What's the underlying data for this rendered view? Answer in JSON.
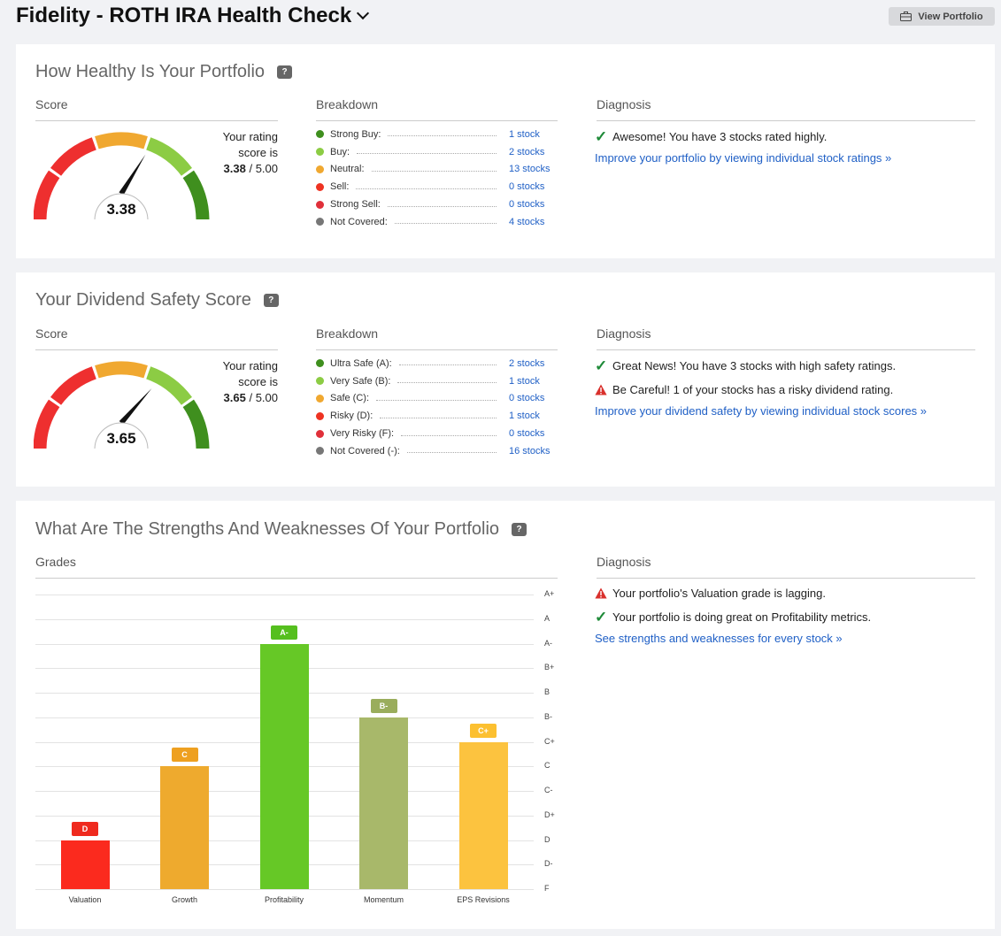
{
  "header": {
    "title": "Fidelity - ROTH IRA Health Check",
    "view_portfolio": "View Portfolio"
  },
  "health": {
    "title": "How Healthy Is Your Portfolio",
    "help": "?",
    "score_head": "Score",
    "breakdown_head": "Breakdown",
    "diagnosis_head": "Diagnosis",
    "gauge_value": "3.38",
    "score_fraction": 0.676,
    "rating_line1": "Your rating",
    "rating_line2": "score is",
    "rating_score": "3.38",
    "rating_max": "/ 5.00",
    "breakdown": [
      {
        "label": "Strong Buy:",
        "count": "1 stock",
        "color": "#3f8f1e"
      },
      {
        "label": "Buy:",
        "count": "2 stocks",
        "color": "#8ccc44"
      },
      {
        "label": "Neutral:",
        "count": "13 stocks",
        "color": "#f0a830"
      },
      {
        "label": "Sell:",
        "count": "0 stocks",
        "color": "#ee3322"
      },
      {
        "label": "Strong Sell:",
        "count": "0 stocks",
        "color": "#e0303a"
      },
      {
        "label": "Not Covered:",
        "count": "4 stocks",
        "color": "#777777"
      }
    ],
    "diagnosis": [
      {
        "icon": "check-icon",
        "text": "Awesome! You have 3 stocks rated highly."
      }
    ],
    "link": "Improve your portfolio by viewing individual stock ratings »"
  },
  "dividend": {
    "title": "Your Dividend Safety Score",
    "help": "?",
    "score_head": "Score",
    "breakdown_head": "Breakdown",
    "diagnosis_head": "Diagnosis",
    "gauge_value": "3.65",
    "score_fraction": 0.73,
    "rating_line1": "Your rating",
    "rating_line2": "score is",
    "rating_score": "3.65",
    "rating_max": "/ 5.00",
    "breakdown": [
      {
        "label": "Ultra Safe (A):",
        "count": "2 stocks",
        "color": "#3f8f1e"
      },
      {
        "label": "Very Safe (B):",
        "count": "1 stock",
        "color": "#8ccc44"
      },
      {
        "label": "Safe (C):",
        "count": "0 stocks",
        "color": "#f0a830"
      },
      {
        "label": "Risky (D):",
        "count": "1 stock",
        "color": "#ee3322"
      },
      {
        "label": "Very Risky (F):",
        "count": "0 stocks",
        "color": "#e0303a"
      },
      {
        "label": "Not Covered (-):",
        "count": "16 stocks",
        "color": "#777777"
      }
    ],
    "diagnosis": [
      {
        "icon": "check-icon",
        "text": "Great News! You have 3 stocks with high safety ratings."
      },
      {
        "icon": "warning-icon",
        "text": "Be Careful! 1 of your stocks has a risky dividend rating."
      }
    ],
    "link": "Improve your dividend safety by viewing individual stock scores »"
  },
  "grades": {
    "title": "What Are The Strengths And Weaknesses Of Your Portfolio",
    "help": "?",
    "grades_head": "Grades",
    "diagnosis_head": "Diagnosis",
    "diagnosis": [
      {
        "icon": "warning-icon",
        "text": "Your portfolio's Valuation grade is lagging."
      },
      {
        "icon": "check-icon",
        "text": "Your portfolio is doing great on Profitability metrics."
      }
    ],
    "link": "See strengths and weaknesses for every stock »"
  },
  "chart_data": {
    "type": "bar",
    "categories": [
      "Valuation",
      "Growth",
      "Profitability",
      "Momentum",
      "EPS Revisions"
    ],
    "values": [
      "D",
      "C",
      "A-",
      "B-",
      "C+"
    ],
    "grade_scale": [
      "F",
      "D-",
      "D",
      "D+",
      "C-",
      "C",
      "C+",
      "B-",
      "B",
      "B+",
      "A-",
      "A",
      "A+"
    ],
    "bar_colors": [
      "#fb2a1e",
      "#eeaa2e",
      "#66c826",
      "#a8b86a",
      "#fcc33f"
    ],
    "badge_colors": [
      "#ef2a1e",
      "#eea020",
      "#55bf1e",
      "#9aad5c",
      "#fcc030"
    ],
    "grid": true,
    "ylim": [
      "F",
      "A+"
    ]
  }
}
